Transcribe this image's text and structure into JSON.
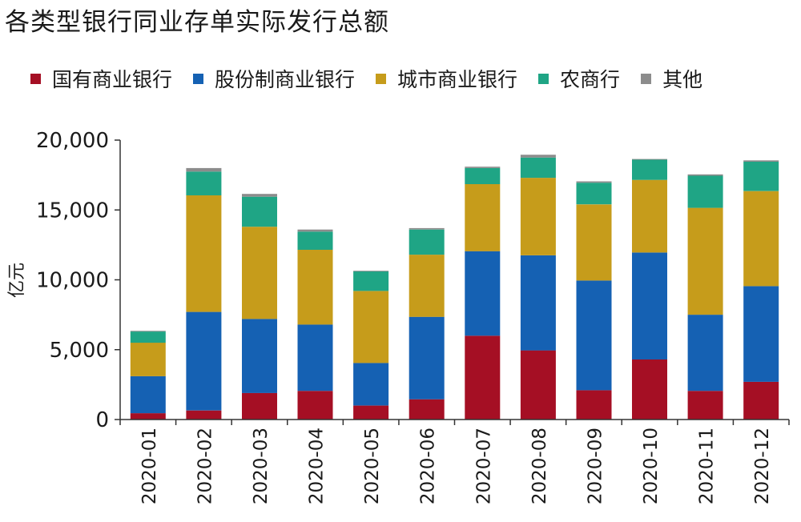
{
  "title": "各类型银行同业存单实际发行总额",
  "colors": {
    "国有商业银行": "#a50f24",
    "股份制商业银行": "#1561b3",
    "城市商业银行": "#c69c1b",
    "农商行": "#1fa585",
    "其他": "#8c8c8c"
  },
  "chart_data": {
    "type": "bar",
    "stacked": true,
    "title": "各类型银行同业存单实际发行总额",
    "xlabel": "",
    "ylabel": "亿元",
    "ylim": [
      0,
      20000
    ],
    "yticks": [
      "0",
      "5,000",
      "10,000",
      "15,000",
      "20,000"
    ],
    "grid": false,
    "legend_position": "top",
    "categories": [
      "2020-01",
      "2020-02",
      "2020-03",
      "2020-04",
      "2020-05",
      "2020-06",
      "2020-07",
      "2020-08",
      "2020-09",
      "2020-10",
      "2020-11",
      "2020-12"
    ],
    "series": [
      {
        "name": "国有商业银行",
        "values": [
          450,
          650,
          1900,
          2050,
          1000,
          1450,
          6000,
          4950,
          2100,
          4300,
          2050,
          2700
        ]
      },
      {
        "name": "股份制商业银行",
        "values": [
          2650,
          7050,
          5300,
          4750,
          3050,
          5900,
          6050,
          6800,
          7850,
          7650,
          5450,
          6850
        ]
      },
      {
        "name": "城市商业银行",
        "values": [
          2400,
          8350,
          6600,
          5350,
          5150,
          4450,
          4800,
          5550,
          5450,
          5200,
          7650,
          6800
        ]
      },
      {
        "name": "农商行",
        "values": [
          800,
          1700,
          2150,
          1300,
          1400,
          1800,
          1150,
          1450,
          1550,
          1450,
          2300,
          2100
        ]
      },
      {
        "name": "其他",
        "values": [
          50,
          250,
          200,
          150,
          50,
          100,
          100,
          200,
          100,
          50,
          100,
          100
        ]
      }
    ]
  }
}
